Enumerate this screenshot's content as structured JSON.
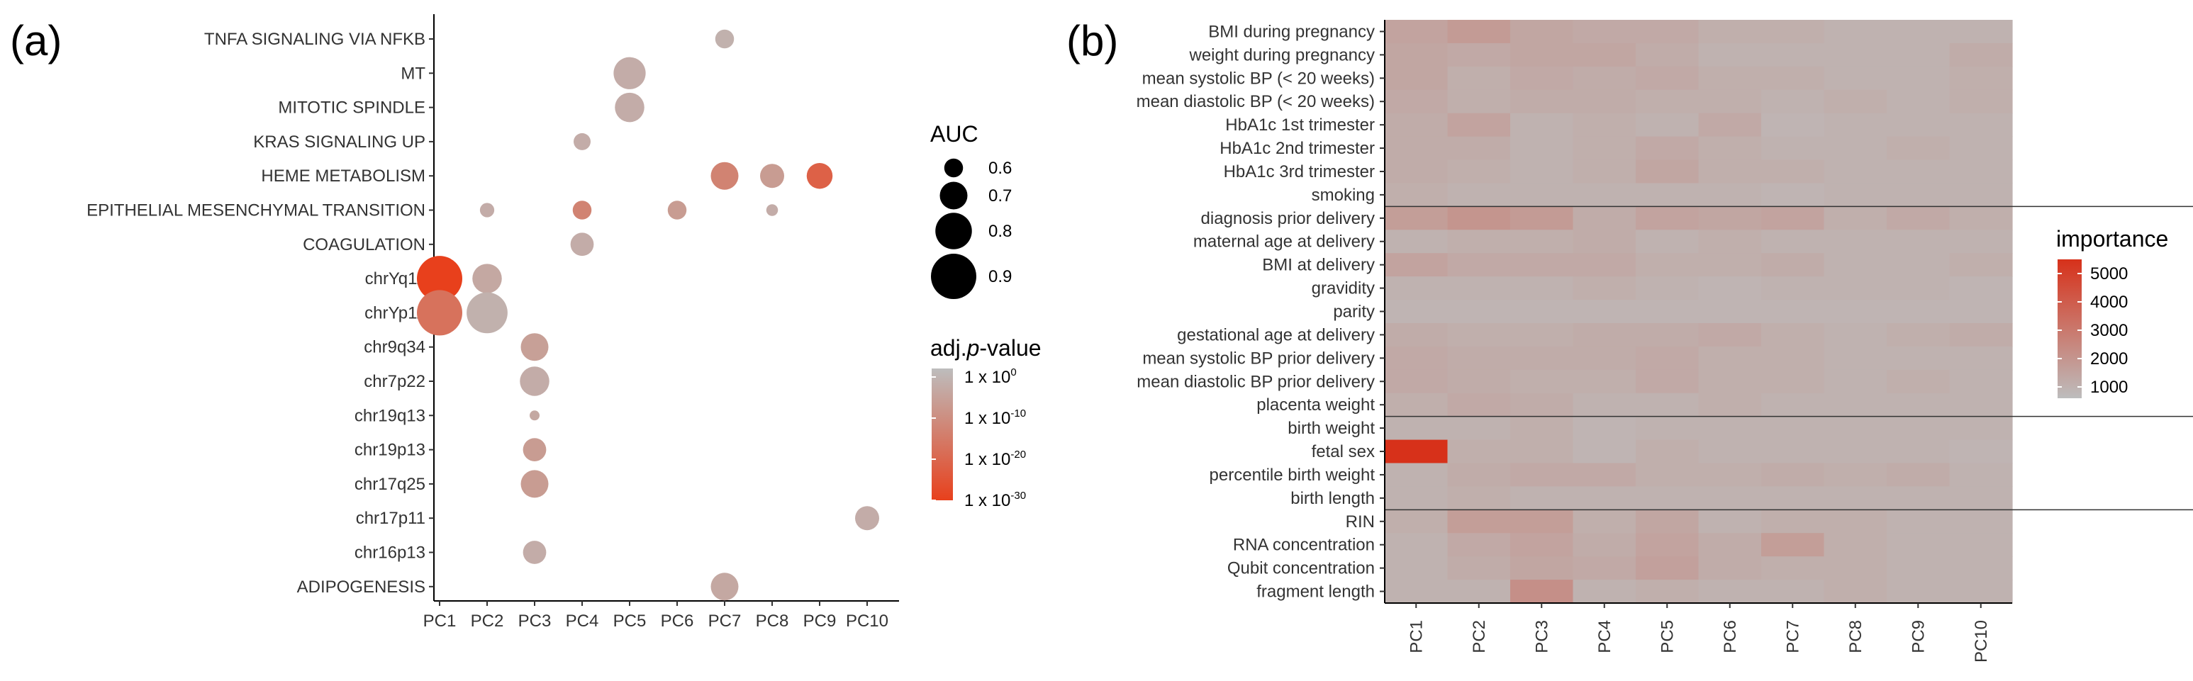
{
  "panel_labels": {
    "a": "(a)",
    "b": "(b)"
  },
  "chart_data": [
    {
      "type": "scatter",
      "subtype": "bubble",
      "x_categories": [
        "PC1",
        "PC2",
        "PC3",
        "PC4",
        "PC5",
        "PC6",
        "PC7",
        "PC8",
        "PC9",
        "PC10"
      ],
      "y_categories": [
        "TNFA SIGNALING VIA NFKB",
        "MT",
        "MITOTIC SPINDLE",
        "KRAS SIGNALING UP",
        "HEME METABOLISM",
        "EPITHELIAL MESENCHYMAL TRANSITION",
        "COAGULATION",
        "chrYq11",
        "chrYp11",
        "chr9q34",
        "chr7p22",
        "chr19q13",
        "chr19p13",
        "chr17q25",
        "chr17p11",
        "chr16p13",
        "ADIPOGENESIS"
      ],
      "points": [
        {
          "x": "PC7",
          "y": "TNFA SIGNALING VIA NFKB",
          "auc": 0.6,
          "neglog10p": 3
        },
        {
          "x": "PC5",
          "y": "MT",
          "auc": 0.75,
          "neglog10p": 4
        },
        {
          "x": "PC5",
          "y": "MITOTIC SPINDLE",
          "auc": 0.72,
          "neglog10p": 4
        },
        {
          "x": "PC4",
          "y": "KRAS SIGNALING UP",
          "auc": 0.58,
          "neglog10p": 4
        },
        {
          "x": "PC7",
          "y": "HEME METABOLISM",
          "auc": 0.7,
          "neglog10p": 14
        },
        {
          "x": "PC8",
          "y": "HEME METABOLISM",
          "auc": 0.66,
          "neglog10p": 8
        },
        {
          "x": "PC9",
          "y": "HEME METABOLISM",
          "auc": 0.68,
          "neglog10p": 22
        },
        {
          "x": "PC2",
          "y": "EPITHELIAL MESENCHYMAL TRANSITION",
          "auc": 0.55,
          "neglog10p": 4
        },
        {
          "x": "PC4",
          "y": "EPITHELIAL MESENCHYMAL TRANSITION",
          "auc": 0.6,
          "neglog10p": 14
        },
        {
          "x": "PC6",
          "y": "EPITHELIAL MESENCHYMAL TRANSITION",
          "auc": 0.6,
          "neglog10p": 8
        },
        {
          "x": "PC8",
          "y": "EPITHELIAL MESENCHYMAL TRANSITION",
          "auc": 0.52,
          "neglog10p": 4
        },
        {
          "x": "PC4",
          "y": "COAGULATION",
          "auc": 0.65,
          "neglog10p": 4
        },
        {
          "x": "PC1",
          "y": "chrYq11",
          "auc": 0.9,
          "neglog10p": 30
        },
        {
          "x": "PC2",
          "y": "chrYq11",
          "auc": 0.72,
          "neglog10p": 5
        },
        {
          "x": "PC1",
          "y": "chrYp11",
          "auc": 0.9,
          "neglog10p": 18
        },
        {
          "x": "PC2",
          "y": "chrYp11",
          "auc": 0.85,
          "neglog10p": 3
        },
        {
          "x": "PC3",
          "y": "chr9q34",
          "auc": 0.7,
          "neglog10p": 7
        },
        {
          "x": "PC3",
          "y": "chr7p22",
          "auc": 0.72,
          "neglog10p": 4
        },
        {
          "x": "PC3",
          "y": "chr19q13",
          "auc": 0.5,
          "neglog10p": 5
        },
        {
          "x": "PC3",
          "y": "chr19p13",
          "auc": 0.65,
          "neglog10p": 8
        },
        {
          "x": "PC3",
          "y": "chr17q25",
          "auc": 0.7,
          "neglog10p": 8
        },
        {
          "x": "PC10",
          "y": "chr17p11",
          "auc": 0.66,
          "neglog10p": 4
        },
        {
          "x": "PC3",
          "y": "chr16p13",
          "auc": 0.65,
          "neglog10p": 4
        },
        {
          "x": "PC7",
          "y": "ADIPOGENESIS",
          "auc": 0.7,
          "neglog10p": 5
        }
      ],
      "size_legend": {
        "title": "AUC",
        "values": [
          "0.6",
          "0.7",
          "0.8",
          "0.9"
        ]
      },
      "color_legend": {
        "title_prefix": "adj.",
        "title_italic": "p",
        "title_suffix": "-value",
        "labels": [
          {
            "base": "1 x 10",
            "exp": "0"
          },
          {
            "base": "1 x 10",
            "exp": "-10"
          },
          {
            "base": "1 x 10",
            "exp": "-20"
          },
          {
            "base": "1 x 10",
            "exp": "-30"
          }
        ],
        "low_color": "#bdbdbd",
        "high_color": "#e8401c"
      }
    },
    {
      "type": "heatmap",
      "x_categories": [
        "PC1",
        "PC2",
        "PC3",
        "PC4",
        "PC5",
        "PC6",
        "PC7",
        "PC8",
        "PC9",
        "PC10"
      ],
      "y_categories": [
        "BMI during pregnancy",
        "weight during pregnancy",
        "mean systolic BP (< 20 weeks)",
        "mean diastolic BP (< 20 weeks)",
        "HbA1c 1st trimester",
        "HbA1c 2nd trimester",
        "HbA1c 3rd trimester",
        "smoking",
        "diagnosis prior delivery",
        "maternal age at delivery",
        "BMI at delivery",
        "gravidity",
        "parity",
        "gestational age at delivery",
        "mean systolic BP prior delivery",
        "mean diastolic BP prior delivery",
        "placenta weight",
        "birth weight",
        "fetal sex",
        "percentile birth weight",
        "birth length",
        "RIN",
        "RNA concentration",
        "Qubit concentration",
        "fragment length"
      ],
      "values": [
        [
          1500,
          1800,
          1400,
          1300,
          1300,
          1100,
          1100,
          1000,
          1000,
          1000
        ],
        [
          1400,
          1300,
          1400,
          1400,
          1200,
          1000,
          1000,
          1000,
          1000,
          1200
        ],
        [
          1400,
          1100,
          1300,
          1200,
          1300,
          1100,
          1100,
          1000,
          1000,
          1100
        ],
        [
          1300,
          1100,
          1200,
          1200,
          1100,
          1100,
          1000,
          1100,
          1000,
          1100
        ],
        [
          1200,
          1500,
          1000,
          1100,
          1000,
          1300,
          900,
          1000,
          1000,
          1000
        ],
        [
          1200,
          1200,
          1000,
          1100,
          1300,
          1100,
          1000,
          1000,
          1100,
          1000
        ],
        [
          1200,
          1100,
          1000,
          1100,
          1400,
          1100,
          1100,
          1000,
          1000,
          1000
        ],
        [
          1100,
          1000,
          1000,
          1000,
          1000,
          1000,
          900,
          1000,
          1000,
          1000
        ],
        [
          1700,
          2000,
          1800,
          1200,
          1500,
          1400,
          1500,
          1100,
          1300,
          1100
        ],
        [
          1000,
          1100,
          1100,
          1200,
          1000,
          1100,
          1000,
          1000,
          1000,
          1000
        ],
        [
          1500,
          1300,
          1300,
          1300,
          1100,
          1100,
          1200,
          1000,
          1000,
          1100
        ],
        [
          1000,
          1000,
          1000,
          1100,
          1000,
          900,
          1000,
          1000,
          1000,
          900
        ],
        [
          900,
          900,
          900,
          900,
          900,
          900,
          900,
          900,
          900,
          900
        ],
        [
          1200,
          1100,
          1100,
          1200,
          1200,
          1300,
          1100,
          1000,
          1100,
          1200
        ],
        [
          1300,
          1200,
          1200,
          1200,
          1300,
          1100,
          1100,
          1000,
          1000,
          1000
        ],
        [
          1300,
          1200,
          1100,
          1100,
          1300,
          1100,
          1100,
          1000,
          1100,
          1000
        ],
        [
          1100,
          1300,
          1200,
          1000,
          1000,
          1100,
          1000,
          1000,
          1000,
          1000
        ],
        [
          1000,
          1000,
          1100,
          900,
          1000,
          1000,
          1000,
          1000,
          1000,
          1000
        ],
        [
          5500,
          1100,
          1100,
          900,
          1100,
          1000,
          1000,
          1000,
          1000,
          900
        ],
        [
          1000,
          1200,
          1300,
          1300,
          1100,
          1100,
          1200,
          1100,
          1200,
          1000
        ],
        [
          1000,
          1100,
          1000,
          1000,
          1000,
          1000,
          1000,
          1000,
          1000,
          1000
        ],
        [
          1100,
          1700,
          1700,
          1100,
          1400,
          1000,
          1100,
          1100,
          1000,
          1000
        ],
        [
          1000,
          1300,
          1500,
          1200,
          1500,
          1200,
          1700,
          1100,
          1000,
          1000
        ],
        [
          1000,
          1200,
          1400,
          1300,
          1600,
          1200,
          1100,
          1100,
          1000,
          1000
        ],
        [
          1000,
          1000,
          2200,
          1000,
          1100,
          1000,
          1000,
          1100,
          1000,
          1000
        ]
      ],
      "separators_after": [
        "smoking",
        "placenta weight",
        "birth length"
      ],
      "colorbar": {
        "title": "importance",
        "ticks": [
          1000,
          2000,
          3000,
          4000,
          5000
        ],
        "range": [
          600,
          5500
        ],
        "low_color": "#bdbdbd",
        "high_color": "#d7311a"
      }
    }
  ]
}
